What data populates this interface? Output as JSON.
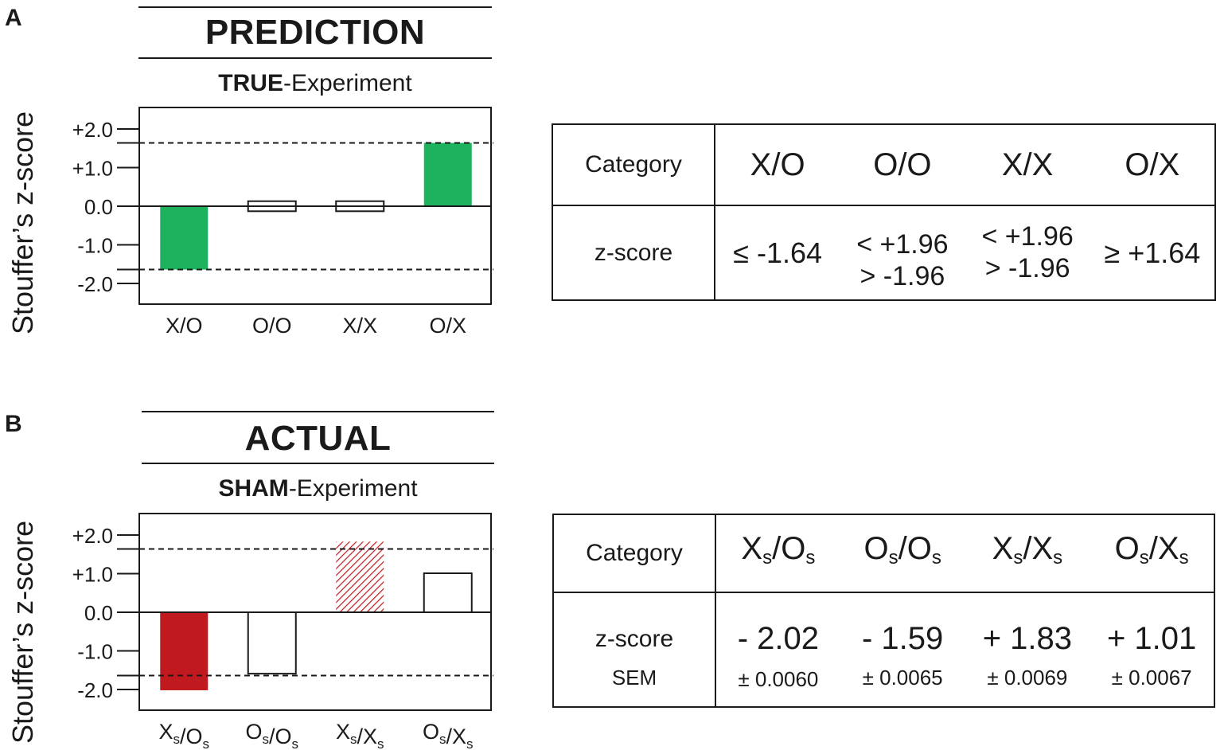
{
  "panel_a": {
    "letter": "A",
    "title": "PREDICTION",
    "subtitle_bold": "TRUE",
    "subtitle_rest": "-Experiment",
    "ylabel": "Stouffer’s z-score",
    "table": {
      "row1_label": "Category",
      "row2_label": "z-score",
      "headers": [
        "X/O",
        "O/O",
        "X/X",
        "O/X"
      ],
      "values": [
        [
          "≤ -1.64"
        ],
        [
          "< +1.96",
          "> -1.96"
        ],
        [
          "< +1.96",
          "> -1.96"
        ],
        [
          "≥ +1.64"
        ]
      ]
    }
  },
  "panel_b": {
    "letter": "B",
    "title": "ACTUAL",
    "subtitle_bold": "SHAM",
    "subtitle_rest": "-Experiment",
    "ylabel": "Stouffer’s z-score",
    "table": {
      "row1_label": "Category",
      "row2_label": "z-score",
      "row3_label": "SEM",
      "headers": [
        {
          "main1": "X",
          "sub1": "s",
          "sep": "/",
          "main2": "O",
          "sub2": "s"
        },
        {
          "main1": "O",
          "sub1": "s",
          "sep": "/",
          "main2": "O",
          "sub2": "s"
        },
        {
          "main1": "X",
          "sub1": "s",
          "sep": "/",
          "main2": "X",
          "sub2": "s"
        },
        {
          "main1": "O",
          "sub1": "s",
          "sep": "/",
          "main2": "X",
          "sub2": "s"
        }
      ],
      "zscores": [
        "- 2.02",
        "- 1.59",
        "+ 1.83",
        "+ 1.01"
      ],
      "sems": [
        "± 0.0060",
        "± 0.0065",
        "± 0.0069",
        "± 0.0067"
      ]
    }
  },
  "chart_data": [
    {
      "type": "bar",
      "title": "PREDICTION",
      "subtitle": "TRUE-Experiment",
      "ylabel": "Stouffer’s z-score",
      "categories": [
        "X/O",
        "O/O",
        "X/X",
        "O/X"
      ],
      "values": [
        -1.64,
        0.1,
        0.1,
        1.64
      ],
      "fills": [
        "solid",
        "outline",
        "outline",
        "solid"
      ],
      "colors": [
        "#1db35e",
        "#ffffff",
        "#ffffff",
        "#1db35e"
      ],
      "ylim": [
        -2.5,
        2.5
      ],
      "yticks": [
        2.0,
        1.0,
        0.0,
        -1.0,
        -2.0
      ],
      "ytick_labels": [
        "+2.0",
        "+1.0",
        "0.0",
        "-1.0",
        "-2.0"
      ],
      "threshold_lines": [
        1.64,
        -1.64
      ],
      "grid": false
    },
    {
      "type": "bar",
      "title": "ACTUAL",
      "subtitle": "SHAM-Experiment",
      "ylabel": "Stouffer’s z-score",
      "categories": [
        "Xs/Os",
        "Os/Os",
        "Xs/Xs",
        "Os/Xs"
      ],
      "values": [
        -2.02,
        -1.59,
        1.83,
        1.01
      ],
      "fills": [
        "solid",
        "outline",
        "hatched",
        "outline"
      ],
      "colors": [
        "#c0191f",
        "#ffffff",
        "#c0191f",
        "#ffffff"
      ],
      "ylim": [
        -2.5,
        2.5
      ],
      "yticks": [
        2.0,
        1.0,
        0.0,
        -1.0,
        -2.0
      ],
      "ytick_labels": [
        "+2.0",
        "+1.0",
        "0.0",
        "-1.0",
        "-2.0"
      ],
      "threshold_lines": [
        1.64,
        -1.64
      ],
      "grid": false
    }
  ]
}
